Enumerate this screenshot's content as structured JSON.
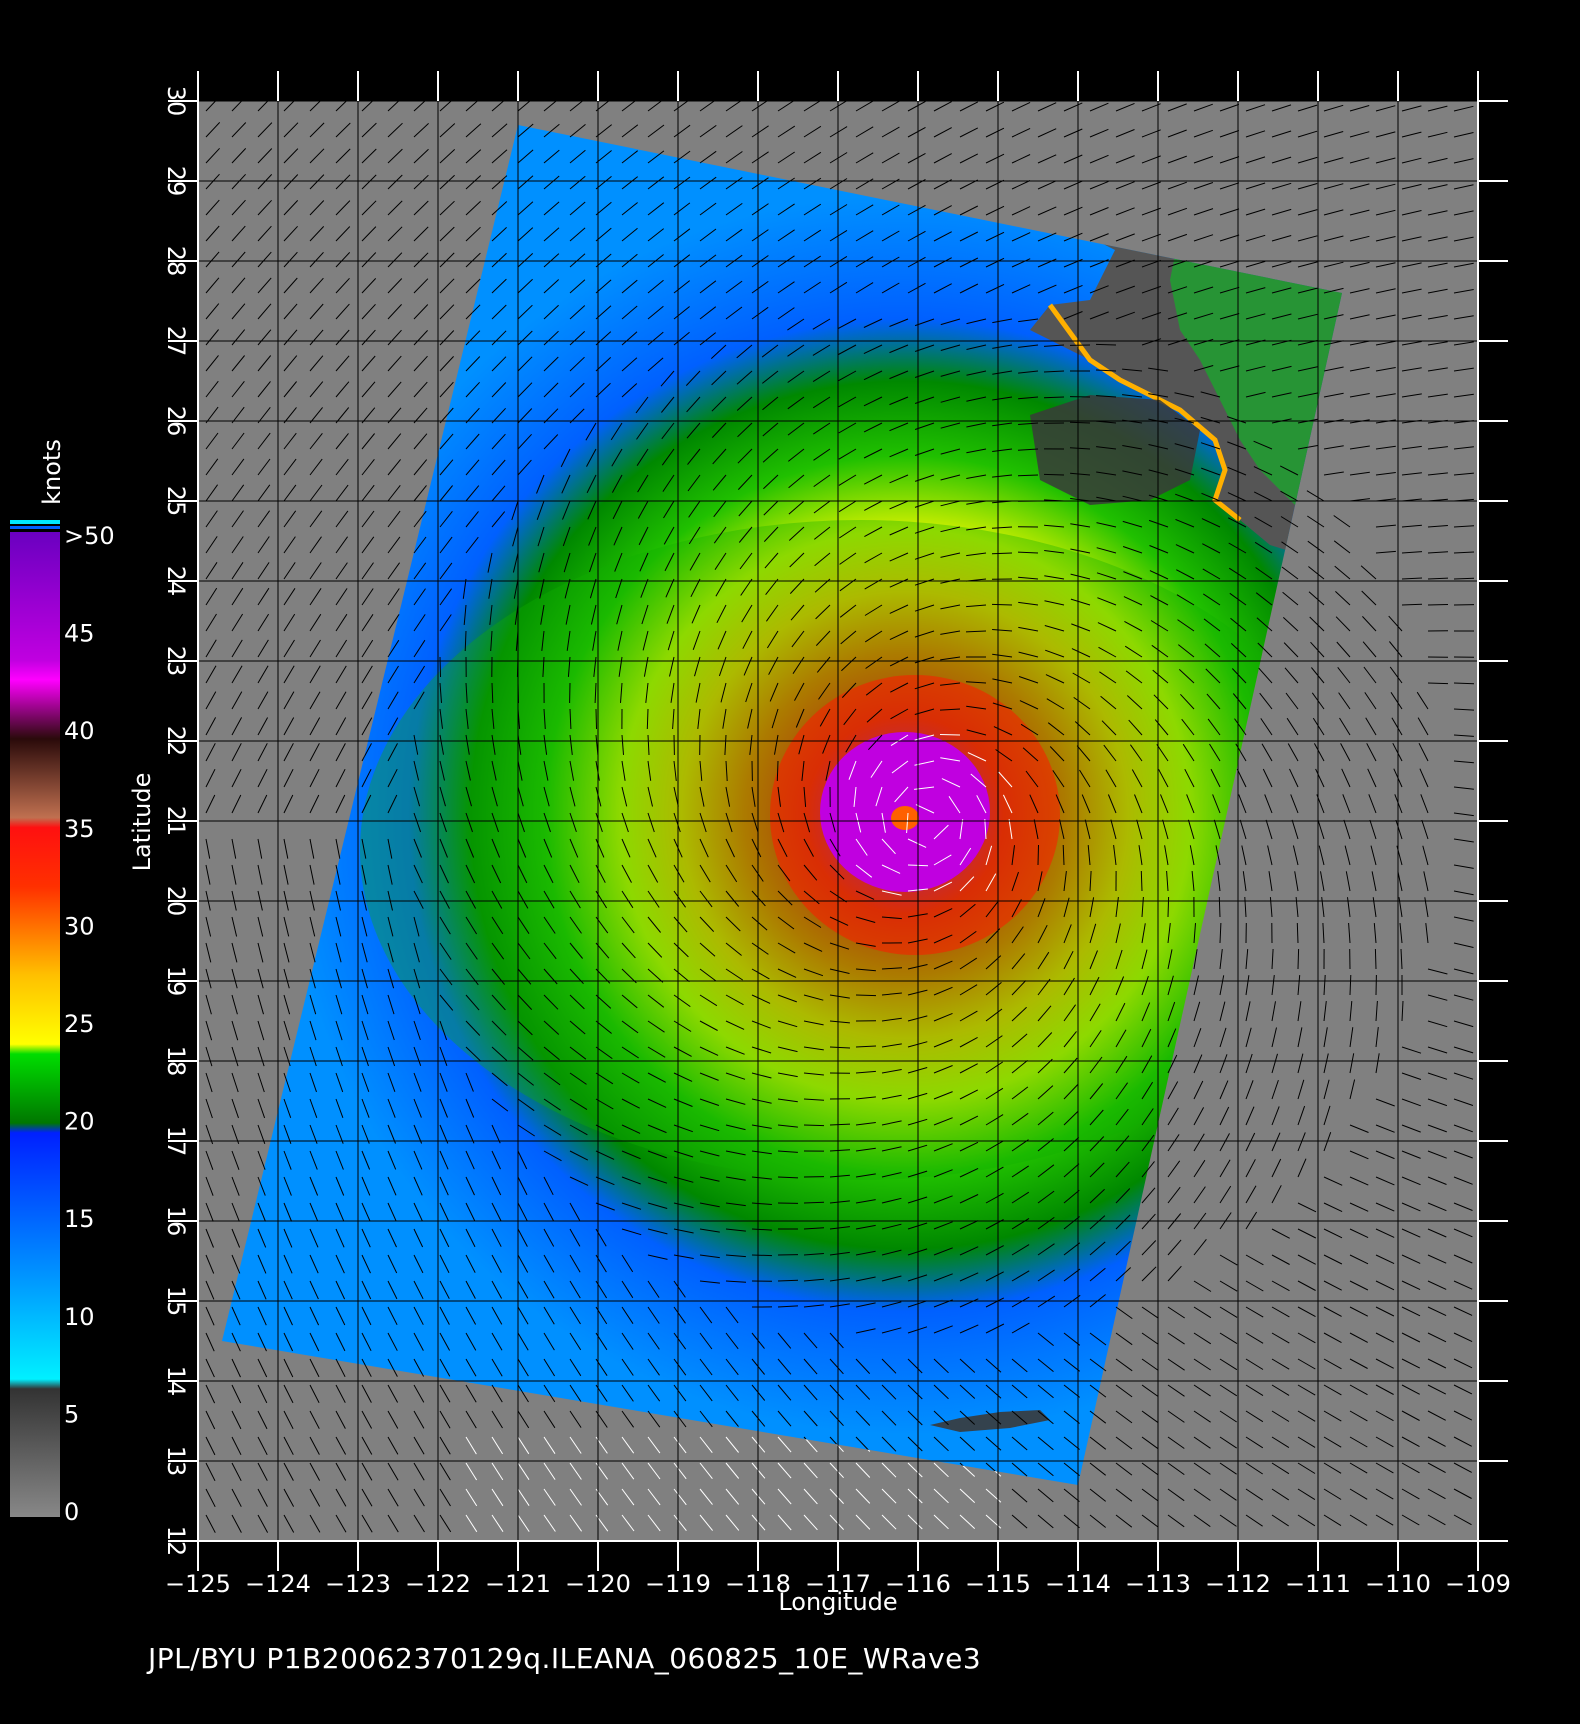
{
  "x_axis": {
    "label": "Longitude",
    "ticks": [
      "−125",
      "−124",
      "−123",
      "−122",
      "−121",
      "−120",
      "−119",
      "−118",
      "−117",
      "−116",
      "−115",
      "−114",
      "−113",
      "−112",
      "−111",
      "−110",
      "−109"
    ],
    "min": -125,
    "max": -109
  },
  "y_axis": {
    "label": "Latitude",
    "ticks": [
      "12",
      "13",
      "14",
      "15",
      "16",
      "17",
      "18",
      "19",
      "20",
      "21",
      "22",
      "23",
      "24",
      "25",
      "26",
      "27",
      "28",
      "29",
      "30"
    ],
    "min": 12,
    "max": 30
  },
  "colorbar": {
    "unit": "knots",
    "labels": [
      ">50",
      "45",
      "40",
      "35",
      "30",
      "25",
      "20",
      "15",
      "10",
      "5",
      "0"
    ],
    "colors": {
      "grey_low": "#777777",
      "grey_high": "#333333",
      "cyan": "#00e8ff",
      "blue": "#0070ff",
      "blue_deep": "#0020ff",
      "green": "#00dd00",
      "green_dark": "#007700",
      "yellow": "#ffff00",
      "orange": "#ffb000",
      "red_orange": "#ff5000",
      "red": "#ff1010",
      "brown_light": "#c07050",
      "brown_dark": "#301010",
      "magenta": "#ff00ff",
      "purple": "#7a00c8"
    }
  },
  "map": {
    "storm_center_lon": -115.9,
    "storm_center_lat": 21.0,
    "colors": {
      "background": "#808080",
      "land": "#555555",
      "grid": "#000000",
      "low_wind_vectors": "#ffffff"
    }
  },
  "footer": "JPL/BYU  P1B20062370129q.ILEANA_060825_10E_WRave3"
}
